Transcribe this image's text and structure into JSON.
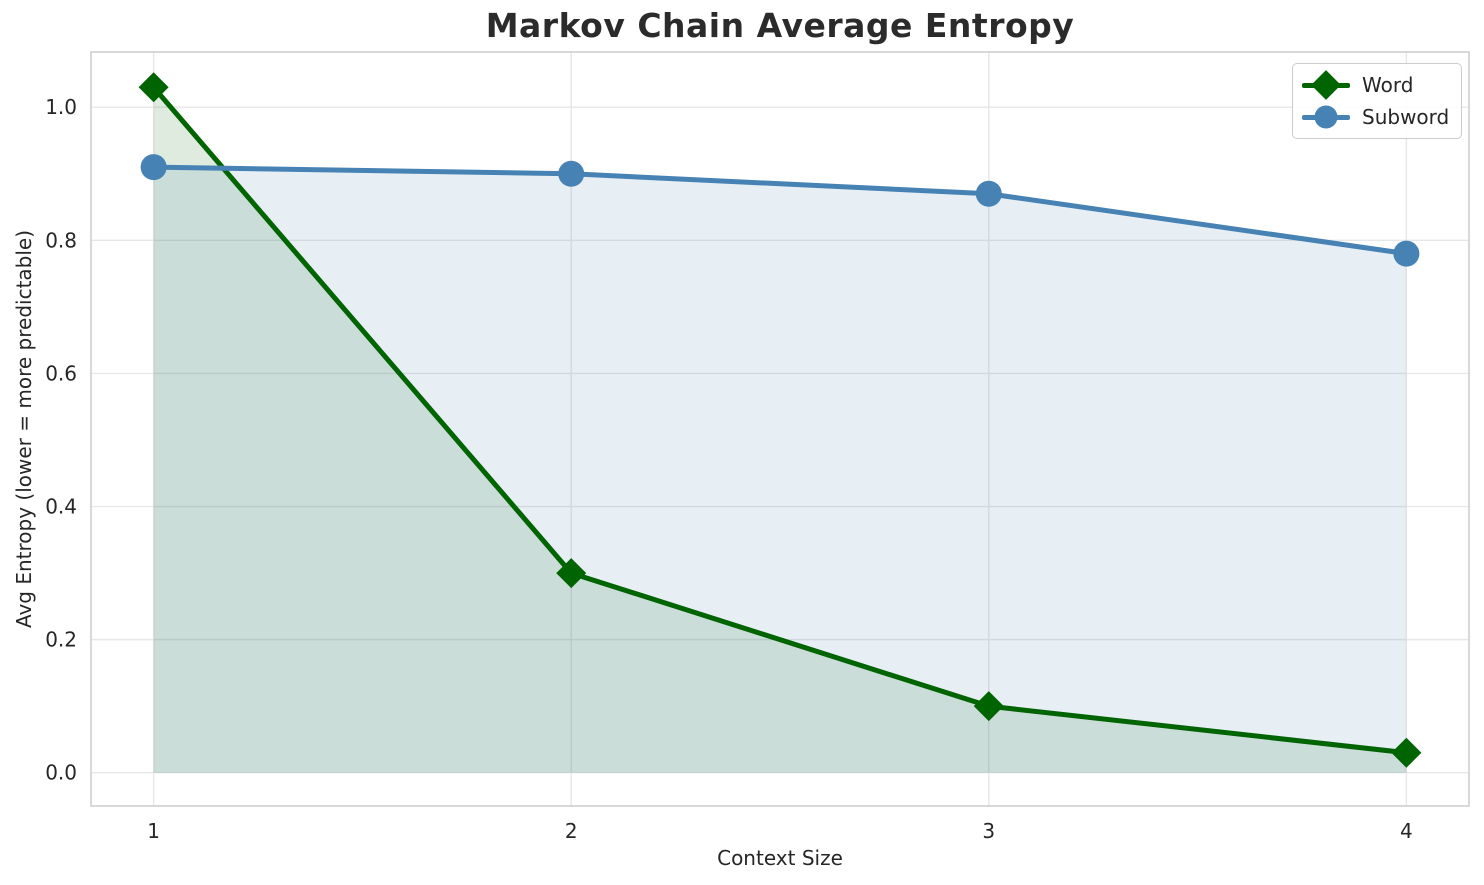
{
  "figure": {
    "background": "#ffffff"
  },
  "chart_data": {
    "type": "line",
    "title": "Markov Chain Average Entropy",
    "xlabel": "Context Size",
    "ylabel": "Avg Entropy (lower = more predictable)",
    "x": [
      1,
      2,
      3,
      4
    ],
    "series": [
      {
        "name": "Word",
        "values": [
          1.03,
          0.3,
          0.1,
          0.03
        ],
        "color": "#006400",
        "marker": "diamond",
        "fill_to_zero": true,
        "fill_opacity": 0.13
      },
      {
        "name": "Subword",
        "values": [
          0.91,
          0.9,
          0.87,
          0.78
        ],
        "color": "#4682b4",
        "marker": "circle",
        "fill_to_zero": true,
        "fill_opacity": 0.13
      }
    ],
    "xlim": [
      0.85,
      4.15
    ],
    "ylim": [
      -0.05,
      1.083
    ],
    "xticks": [
      1,
      2,
      3,
      4
    ],
    "xtick_labels": [
      "1",
      "2",
      "3",
      "4"
    ],
    "yticks": [
      0.0,
      0.2,
      0.4,
      0.6,
      0.8,
      1.0
    ],
    "ytick_labels": [
      "0.0",
      "0.2",
      "0.4",
      "0.6",
      "0.8",
      "1.0"
    ],
    "grid": true,
    "legend_position": "upper right",
    "style": {
      "grid_color": "#e7e7e7",
      "spine_color": "#cfcfcf",
      "text_color": "#262626",
      "line_width": 5,
      "marker_size": 15
    }
  }
}
